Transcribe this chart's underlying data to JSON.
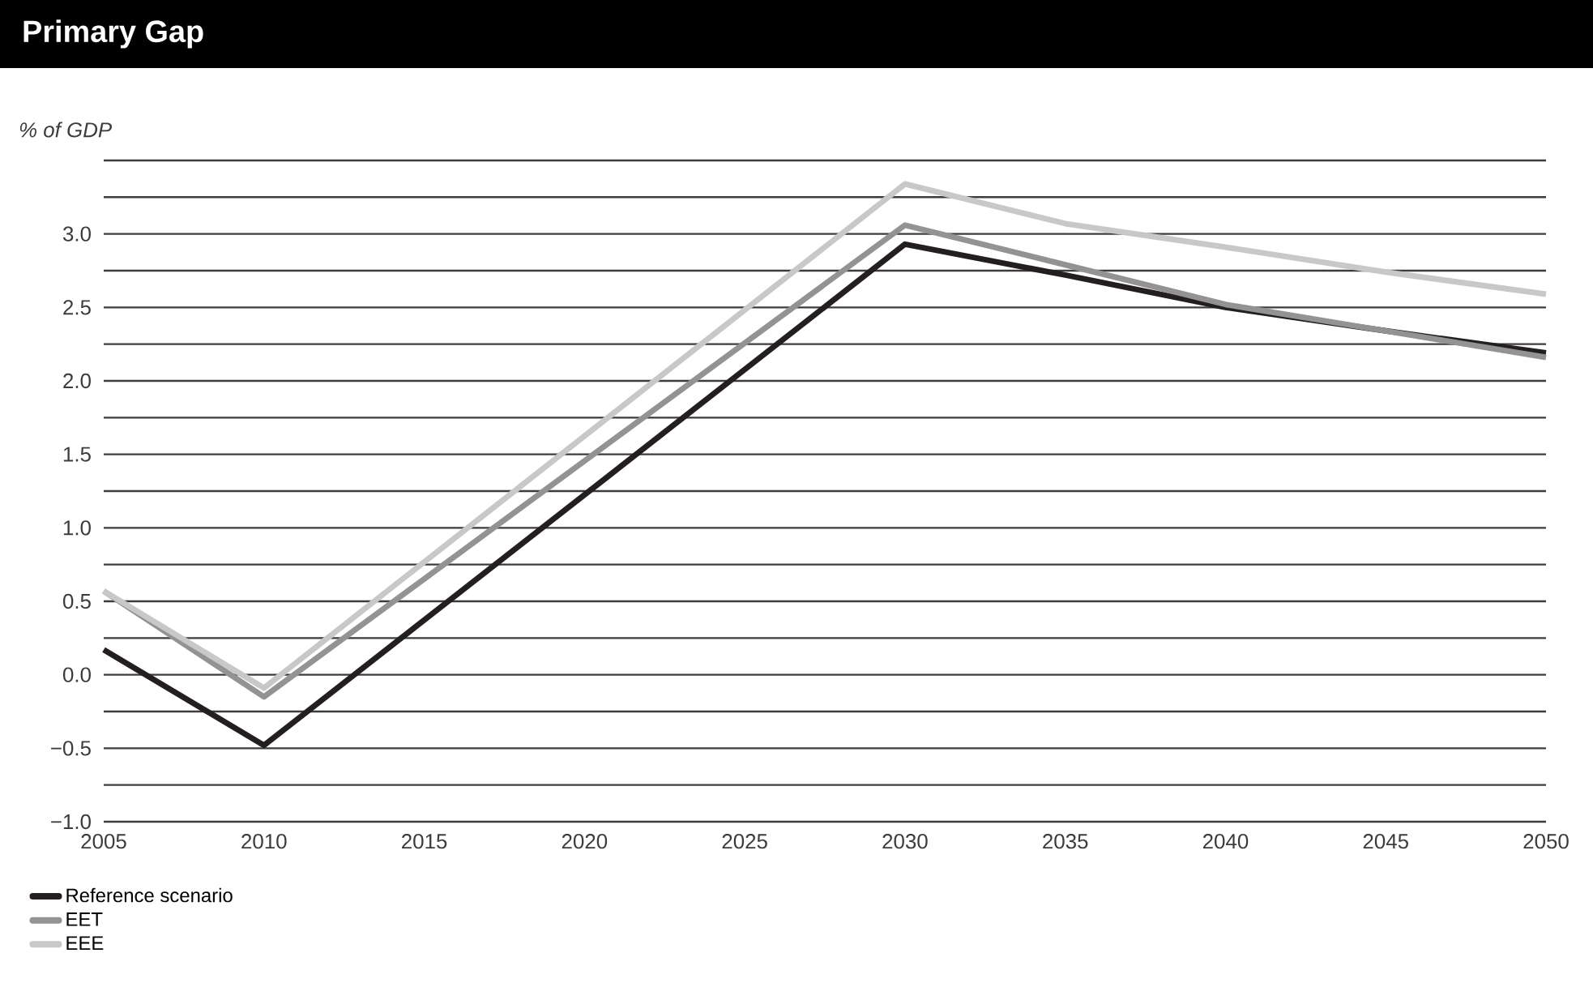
{
  "chart_data": {
    "type": "line",
    "title": "Primary Gap",
    "ylabel": "% of GDP",
    "x": [
      2005,
      2010,
      2030,
      2035,
      2040,
      2045,
      2050
    ],
    "series": [
      {
        "name": "Reference scenario",
        "color": "#231f20",
        "values": [
          0.17,
          -0.48,
          2.93,
          2.72,
          2.5,
          2.34,
          2.19
        ]
      },
      {
        "name": "EET",
        "color": "#939393",
        "values": [
          0.57,
          -0.15,
          3.06,
          2.79,
          2.52,
          2.34,
          2.16
        ]
      },
      {
        "name": "EEE",
        "color": "#c8c8c8",
        "values": [
          0.57,
          -0.09,
          3.34,
          3.07,
          2.91,
          2.74,
          2.59
        ]
      }
    ],
    "xlim": [
      2005,
      2050
    ],
    "xticks": [
      2005,
      2010,
      2015,
      2020,
      2025,
      2030,
      2035,
      2040,
      2045,
      2050
    ],
    "ylim": [
      -1,
      3.5
    ],
    "yticks": [
      {
        "value": -1,
        "label": "−1.0"
      },
      {
        "value": -0.75,
        "label": null
      },
      {
        "value": -0.5,
        "label": "−0.5"
      },
      {
        "value": -0.25,
        "label": null
      },
      {
        "value": 0,
        "label": "0.0"
      },
      {
        "value": 0.25,
        "label": null
      },
      {
        "value": 0.5,
        "label": "0.5"
      },
      {
        "value": 0.75,
        "label": null
      },
      {
        "value": 1,
        "label": "1.0"
      },
      {
        "value": 1.25,
        "label": null
      },
      {
        "value": 1.5,
        "label": "1.5"
      },
      {
        "value": 1.75,
        "label": null
      },
      {
        "value": 2,
        "label": "2.0"
      },
      {
        "value": 2.25,
        "label": null
      },
      {
        "value": 2.5,
        "label": "2.5"
      },
      {
        "value": 2.75,
        "label": null
      },
      {
        "value": 3,
        "label": "3.0"
      },
      {
        "value": 3.25,
        "label": null
      },
      {
        "value": 3.5,
        "label": null
      }
    ],
    "grid": "y",
    "legend": "bottom left",
    "line_style": "solid"
  }
}
